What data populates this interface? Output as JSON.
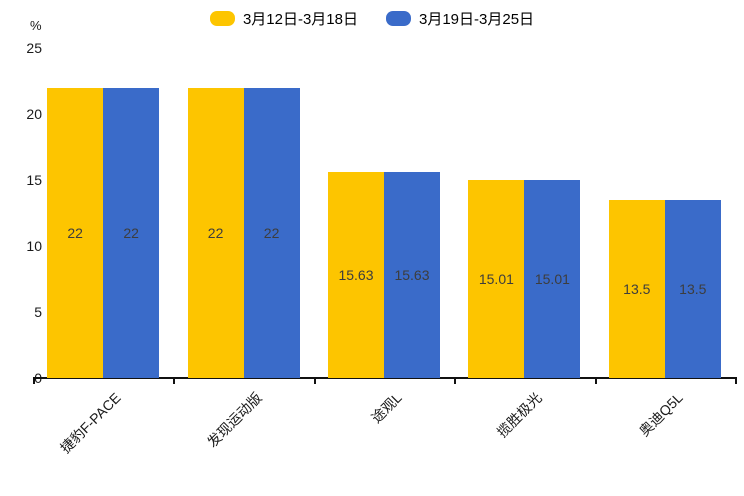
{
  "chart_data": {
    "type": "bar",
    "categories": [
      "捷豹F-PACE",
      "发现运动版",
      "途观L",
      "揽胜极光",
      "奥迪Q5L"
    ],
    "series": [
      {
        "name": "3月12日-3月18日",
        "color": "#FDC500",
        "values": [
          22,
          22,
          15.63,
          15.01,
          13.5
        ]
      },
      {
        "name": "3月19日-3月25日",
        "color": "#3A6BC9",
        "values": [
          22,
          22,
          15.63,
          15.01,
          13.5
        ]
      }
    ],
    "value_labels": [
      [
        "22",
        "22",
        "15.63",
        "15.01",
        "13.5"
      ],
      [
        "22",
        "22",
        "15.63",
        "15.01",
        "13.5"
      ]
    ],
    "title": "",
    "xlabel": "",
    "ylabel": "%",
    "unit": "%",
    "ylim": [
      0,
      25
    ],
    "yticks": [
      0,
      5,
      10,
      15,
      20,
      25
    ],
    "grid": "off",
    "legend_position": "top-center",
    "bar_label_color": "#3d3d3d",
    "axis_color": "#111111"
  }
}
